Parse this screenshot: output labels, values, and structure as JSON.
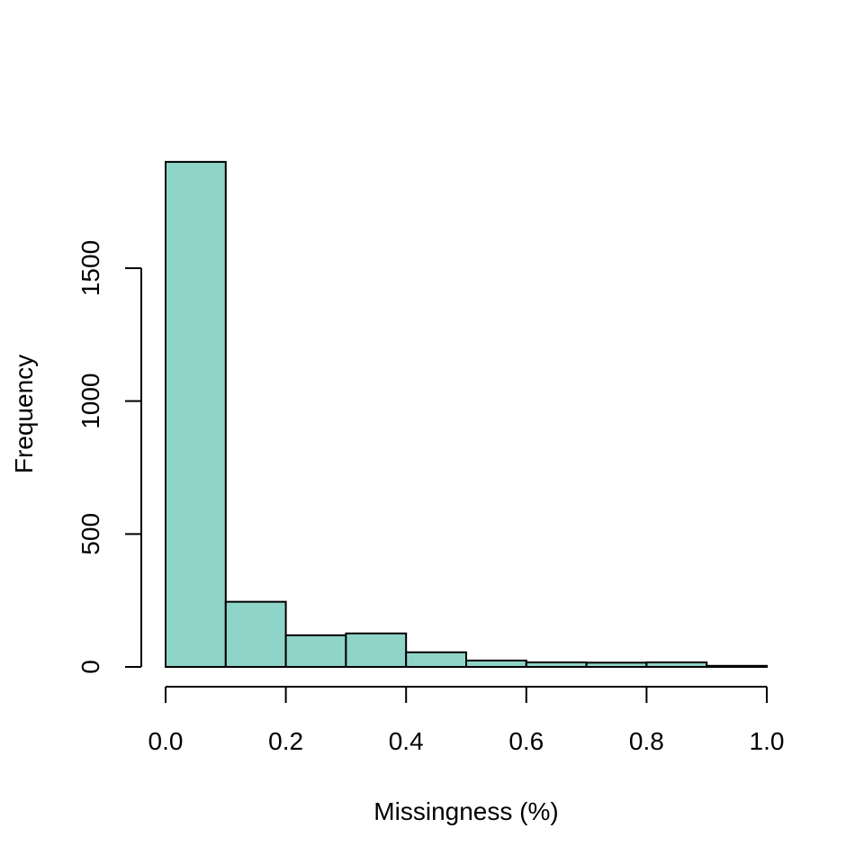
{
  "chart_data": {
    "type": "bar",
    "subtype": "histogram",
    "title": "",
    "xlabel": "Missingness (%)",
    "ylabel": "Frequency",
    "bin_edges": [
      0.0,
      0.1,
      0.2,
      0.3,
      0.4,
      0.5,
      0.6,
      0.7,
      0.8,
      0.9,
      1.0
    ],
    "values": [
      1900,
      245,
      119,
      126,
      55,
      24,
      17,
      16,
      17,
      4
    ],
    "xlim": [
      0,
      1
    ],
    "ylim": [
      0,
      1900
    ],
    "x_ticks": [
      0.0,
      0.2,
      0.4,
      0.6,
      0.8,
      1.0
    ],
    "x_tick_labels": [
      "0.0",
      "0.2",
      "0.4",
      "0.6",
      "0.8",
      "1.0"
    ],
    "y_ticks": [
      0,
      500,
      1000,
      1500
    ],
    "y_tick_labels": [
      "0",
      "500",
      "1000",
      "1500"
    ],
    "bar_color": "#8FD4C8",
    "edge_color": "#000000",
    "grid": false
  }
}
